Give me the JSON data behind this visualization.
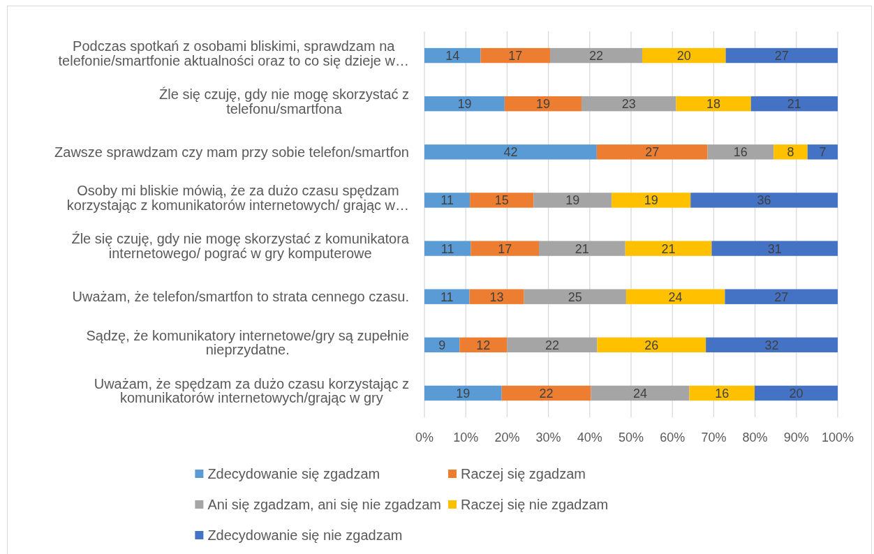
{
  "chart_data": {
    "type": "bar",
    "orientation": "horizontal",
    "stacked": true,
    "categories": [
      "Podczas spotkań z osobami bliskimi, sprawdzam na telefonie/smartfonie aktualności oraz to co się dzieje w…",
      "Źle się czuję, gdy nie mogę skorzystać z telefonu/smartfona",
      "Zawsze sprawdzam czy mam przy sobie telefon/smartfon",
      "Osoby mi bliskie mówią, że za dużo czasu spędzam korzystając z komunikatorów internetowych/ grając w…",
      "Źle się czuję, gdy nie mogę skorzystać z komunikatora internetowego/ pograć w gry komputerowe",
      "Uważam, że telefon/smartfon to strata cennego czasu.",
      "Sądzę, że komunikatory internetowe/gry są zupełnie nieprzydatne.",
      "Uważam, że spędzam za dużo czasu korzystając z komunikatorów internetowych/grając w gry"
    ],
    "series": [
      {
        "name": "Zdecydowanie się zgadzam",
        "color": "#5b9bd5",
        "values": [
          13.6,
          19.4,
          41.7,
          11.0,
          11.2,
          10.9,
          8.5,
          18.7
        ],
        "value_labels": [
          "14",
          "19",
          "42",
          "11",
          "11",
          "11",
          "9",
          "19"
        ]
      },
      {
        "name": "Raczej się zgadzam",
        "color": "#ed7d31",
        "values": [
          16.8,
          18.6,
          26.8,
          15.4,
          16.5,
          13.2,
          11.5,
          21.6
        ],
        "value_labels": [
          "17",
          "19",
          "27",
          "15",
          "17",
          "13",
          "12",
          "22"
        ]
      },
      {
        "name": "Ani się zgadzam, ani się nie zgadzam",
        "color": "#a5a5a5",
        "values": [
          22.3,
          22.9,
          16.0,
          18.9,
          20.9,
          24.7,
          21.8,
          23.8
        ],
        "value_labels": [
          "22",
          "23",
          "16",
          "19",
          "21",
          "25",
          "22",
          "24"
        ]
      },
      {
        "name": "Raczej się nie zgadzam",
        "color": "#ffc000",
        "values": [
          20.2,
          18.1,
          8.2,
          19.1,
          20.9,
          23.9,
          26.3,
          15.8
        ],
        "value_labels": [
          "20",
          "18",
          "8",
          "19",
          "21",
          "24",
          "26",
          "16"
        ]
      },
      {
        "name": "Zdecydowanie się nie zgadzam",
        "color": "#4472c4",
        "values": [
          27.1,
          21.0,
          7.3,
          35.6,
          30.5,
          27.3,
          31.9,
          20.1
        ],
        "value_labels": [
          "27",
          "21",
          "7",
          "36",
          "31",
          "27",
          "32",
          "20"
        ]
      }
    ],
    "xlim": [
      0,
      100
    ],
    "xticks": [
      {
        "value": 0,
        "label": "0%"
      },
      {
        "value": 10,
        "label": "10%"
      },
      {
        "value": 20,
        "label": "20%"
      },
      {
        "value": 30,
        "label": "30%"
      },
      {
        "value": 40,
        "label": "40%"
      },
      {
        "value": 50,
        "label": "50%"
      },
      {
        "value": 60,
        "label": "60%"
      },
      {
        "value": 70,
        "label": "70%"
      },
      {
        "value": 80,
        "label": "80%"
      },
      {
        "value": 90,
        "label": "90%"
      },
      {
        "value": 100,
        "label": "100%"
      }
    ],
    "grid": "x",
    "legend": "bottom"
  }
}
